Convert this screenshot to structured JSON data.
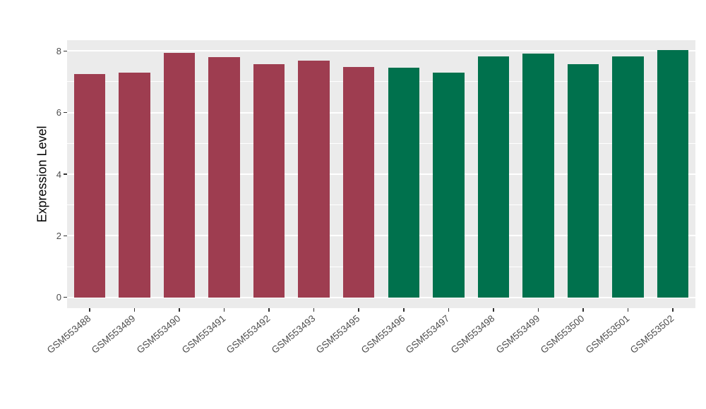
{
  "chart_data": {
    "type": "bar",
    "title": "",
    "xlabel": "",
    "ylabel": "Expression Level",
    "categories": [
      "GSM553488",
      "GSM553489",
      "GSM553490",
      "GSM553491",
      "GSM553492",
      "GSM553493",
      "GSM553495",
      "GSM553496",
      "GSM553497",
      "GSM553498",
      "GSM553499",
      "GSM553500",
      "GSM553501",
      "GSM553502"
    ],
    "values": [
      7.25,
      7.3,
      7.93,
      7.8,
      7.58,
      7.68,
      7.48,
      7.45,
      7.3,
      7.83,
      7.92,
      7.58,
      7.83,
      8.02
    ],
    "groups": [
      "group1",
      "group1",
      "group1",
      "group1",
      "group1",
      "group1",
      "group1",
      "group2",
      "group2",
      "group2",
      "group2",
      "group2",
      "group2",
      "group2"
    ],
    "group_colors": {
      "group1": "#9E3D50",
      "group2": "#00714D"
    },
    "ylim": [
      0,
      8
    ],
    "yticks": [
      0,
      2,
      4,
      6,
      8
    ],
    "ytick_labels": [
      "0",
      "2",
      "4",
      "6",
      "8"
    ],
    "yticks_minor": [
      1,
      3,
      5,
      7
    ],
    "panel_bg": "#EBEBEB",
    "grid_color": "#FFFFFF",
    "legend": "none",
    "bar_width_fraction": 0.7
  }
}
